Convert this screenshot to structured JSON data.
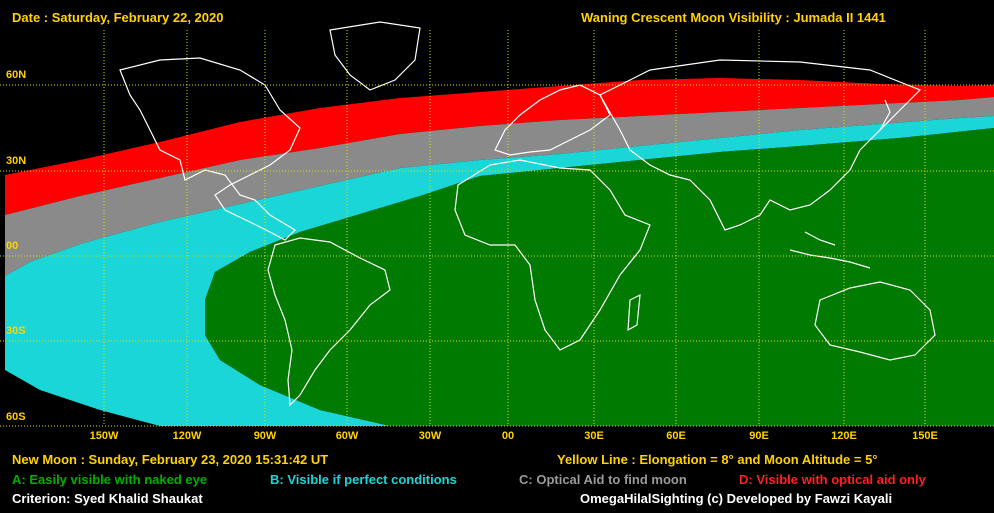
{
  "header": {
    "date": "Date : Saturday, February 22, 2020",
    "title": "Waning Crescent Moon Visibility : Jumada II 1441"
  },
  "latitude_labels": [
    "60N",
    "30N",
    "00",
    "30S",
    "60S"
  ],
  "longitude_labels": [
    "150W",
    "120W",
    "90W",
    "60W",
    "30W",
    "00",
    "30E",
    "60E",
    "90E",
    "120E",
    "150E"
  ],
  "legend": {
    "new_moon": "New Moon : Sunday, February 23, 2020  15:31:42  UT",
    "yellow_line": "Yellow Line : Elongation = 8° and Moon Altitude = 5°",
    "a": "A: Easily visible with naked eye",
    "b": "B: Visible if perfect conditions",
    "c": "C: Optical Aid to find moon",
    "d": "D: Visible with optical aid only",
    "criterion": "Criterion: Syed Khalid Shaukat",
    "credit": "OmegaHilalSighting  (c)  Developed by Fawzi Kayali"
  },
  "colors": {
    "background": "#000000",
    "zone_a": "#007a00",
    "zone_b": "#1ad6d6",
    "zone_c": "#8a8a8a",
    "zone_d": "#ff0000",
    "grid": "#e0e000",
    "coastline": "#ffffff",
    "label": "#ffd200",
    "legend_text": "#ffffff"
  }
}
